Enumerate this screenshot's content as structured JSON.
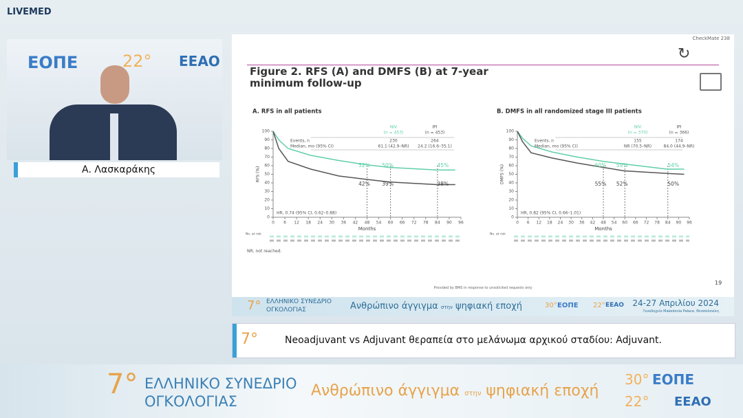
{
  "brand": "LIVEMED",
  "speaker": {
    "name": "Α. Λασκαράκης"
  },
  "logos": {
    "edition_7": "7°",
    "edition_22": "22°",
    "edition_30": "30°",
    "eope": "ΕΟΠΕ",
    "eeao": "ΕΕΑΟ"
  },
  "slide": {
    "corner_label": "CheckMate 238",
    "title": "Figure 2. RFS (A) and DMFS (B) at 7-year minimum follow-up",
    "panels": [
      {
        "title": "A. RFS in all patients",
        "y_axis_label": "RFS (%)",
        "x_axis_label": "Months",
        "yticks": [
          0,
          10,
          20,
          30,
          40,
          50,
          60,
          70,
          80,
          90,
          100
        ],
        "xticks": [
          0,
          6,
          12,
          18,
          24,
          30,
          36,
          42,
          48,
          54,
          60,
          66,
          72,
          78,
          84,
          90,
          96
        ],
        "legend": [
          {
            "name": "NIV",
            "n": "(n = 453)",
            "color": "#5fcfa6"
          },
          {
            "name": "IPI",
            "n": "(n = 453)",
            "color": "#555555"
          }
        ],
        "events_label": "Events, n",
        "events": [
          "230",
          "264"
        ],
        "median_label": "Median, mo (95% CI)",
        "median": [
          "61.1 (42.9–NR)",
          "24.2 (16.6–35.1)"
        ],
        "hr": "HR, 0.74 (95% CI, 0.62–0.88)",
        "nivo_rates": [
          "52%",
          "50%",
          "45%"
        ],
        "ipi_rates": [
          "42%",
          "39%",
          "38%"
        ]
      },
      {
        "title": "B. DMFS in all randomized stage III patients",
        "y_axis_label": "DMFS (%)",
        "x_axis_label": "Months",
        "yticks": [
          0,
          10,
          20,
          30,
          40,
          50,
          60,
          70,
          80,
          90,
          100
        ],
        "xticks": [
          0,
          6,
          12,
          18,
          24,
          30,
          36,
          42,
          48,
          54,
          60,
          66,
          72,
          78,
          84,
          90,
          96
        ],
        "legend": [
          {
            "name": "NIV",
            "n": "(n = 370)",
            "color": "#5fcfa6"
          },
          {
            "name": "IPI",
            "n": "(n = 366)",
            "color": "#555555"
          }
        ],
        "events_label": "Events, n",
        "events": [
          "155",
          "174"
        ],
        "median_label": "Median, mo (95% CI)",
        "median": [
          "NR (70.5–NR)",
          "84.0 (44.9–NR)"
        ],
        "hr": "HR, 0.82 (95% CI, 0.66–1.01)",
        "nivo_rates": [
          "60%",
          "59%",
          "54%"
        ],
        "ipi_rates": [
          "55%",
          "52%",
          "50%"
        ]
      }
    ],
    "risk_label": "No. at risk",
    "footnote": "NR, not reached.",
    "source": "Provided by BMS in response to unsolicited requests only",
    "page_number": "19"
  },
  "banner": {
    "conference": [
      "ΕΛΛΗΝΙΚΟ ΣΥΝΕΔΡΙΟ",
      "ΟΓΚΟΛΟΓΙΑΣ"
    ],
    "tagline_1": "Ανθρώπινο άγγιγμα",
    "tagline_small": "στην",
    "tagline_2": "ψηφιακή εποχή",
    "dates": "24-27 Απριλίου 2024",
    "venue": "Ξενοδοχείο Makedonia Palace, Θεσσαλονίκη"
  },
  "caption": "Neoadjuvant vs Adjuvant θεραπεία στο μελάνωμα αρχικού σταδίου: Adjuvant."
}
